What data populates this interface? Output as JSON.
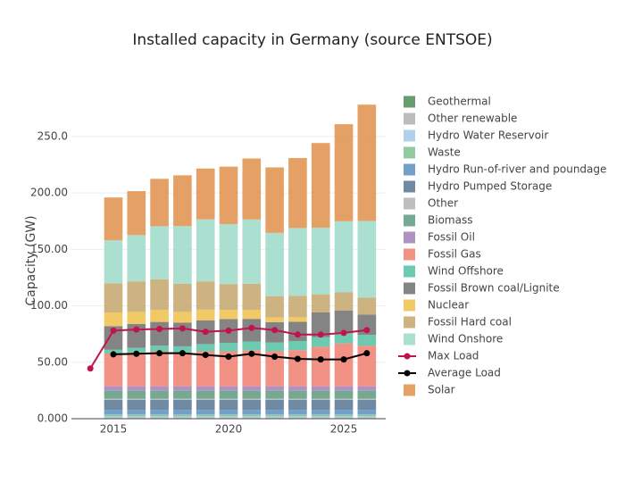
{
  "chart_data": {
    "type": "bar",
    "title": "Installed capacity in Germany (source ENTSOE)",
    "y_label": "Capacity (GW)",
    "x": [
      2015,
      2016,
      2017,
      2018,
      2019,
      2020,
      2021,
      2022,
      2023,
      2024,
      2025,
      2026
    ],
    "xlim": [
      2013.18,
      2026.82
    ],
    "xticks": [
      2015,
      2020,
      2025
    ],
    "ylim": [
      0,
      280
    ],
    "yticks": [
      {
        "value": 0,
        "label": "0.000"
      },
      {
        "value": 50,
        "label": "50.00"
      },
      {
        "value": 100,
        "label": "100.00"
      },
      {
        "value": 150,
        "label": "150.00"
      },
      {
        "value": 200,
        "label": "200.00"
      },
      {
        "value": 250,
        "label": "250.0"
      }
    ],
    "grid": true,
    "stacked": true,
    "series": [
      {
        "name": "Geothermal",
        "color": "#4d8b55",
        "values": [
          0.03,
          0.03,
          0.03,
          0.03,
          0.03,
          0.03,
          0.03,
          0.03,
          0.03,
          0.03,
          0.03,
          0.03
        ]
      },
      {
        "name": "Other renewable",
        "color": "#b0b0b0",
        "values": [
          0.5,
          0.5,
          0.5,
          0.5,
          0.5,
          0.5,
          0.5,
          0.5,
          0.5,
          0.5,
          0.5,
          0.5
        ]
      },
      {
        "name": "Hydro Water Reservoir",
        "color": "#a6c8e8",
        "values": [
          1.5,
          1.5,
          1.5,
          1.5,
          1.5,
          1.5,
          1.5,
          1.5,
          1.5,
          1.5,
          1.5,
          1.5
        ]
      },
      {
        "name": "Waste",
        "color": "#7fbf8f",
        "values": [
          1.7,
          1.7,
          1.7,
          1.7,
          1.7,
          1.7,
          1.7,
          1.7,
          1.7,
          1.7,
          1.7,
          1.7
        ]
      },
      {
        "name": "Hydro Run-of-river and poundage",
        "color": "#5b8fbf",
        "values": [
          4,
          4,
          4,
          4,
          4,
          4,
          4,
          4,
          4,
          4,
          4,
          4
        ]
      },
      {
        "name": "Hydro Pumped Storage",
        "color": "#567592",
        "values": [
          9,
          9,
          9,
          9,
          9,
          9,
          9,
          9,
          9,
          9,
          9,
          9
        ]
      },
      {
        "name": "Other",
        "color": "#b3b3b3",
        "values": [
          1,
          1,
          1,
          1,
          1,
          1,
          1,
          1,
          1,
          1,
          1,
          1
        ]
      },
      {
        "name": "Biomass",
        "color": "#5e9a7e",
        "values": [
          7,
          7,
          7,
          7,
          7,
          7,
          7,
          7,
          7,
          7,
          7,
          7
        ]
      },
      {
        "name": "Fossil Oil",
        "color": "#a07fb7",
        "values": [
          4,
          4,
          4,
          4,
          4,
          4,
          4,
          4,
          4,
          4,
          4,
          4
        ]
      },
      {
        "name": "Fossil Gas",
        "color": "#f07f6e",
        "values": [
          29,
          30,
          31,
          30,
          31,
          31,
          32,
          31,
          32,
          35,
          38,
          36
        ]
      },
      {
        "name": "Wind Offshore",
        "color": "#55bfa3",
        "values": [
          3.3,
          4.1,
          5,
          5.4,
          6.4,
          7.5,
          7.7,
          7.8,
          8.1,
          8.5,
          9.2,
          9.5
        ]
      },
      {
        "name": "Fossil Brown coal/Lignite",
        "color": "#6e6e6e",
        "values": [
          21,
          21,
          21,
          21,
          21,
          21,
          20,
          18,
          17,
          22,
          20,
          18
        ]
      },
      {
        "name": "Nuclear",
        "color": "#efc04a",
        "values": [
          12,
          10.8,
          10.8,
          9.5,
          9.5,
          8.1,
          8.1,
          4.1,
          4.1,
          0,
          0,
          0
        ]
      },
      {
        "name": "Fossil Hard coal",
        "color": "#c4a66c",
        "values": [
          26,
          27,
          27,
          25,
          25,
          23,
          23,
          19,
          19,
          16,
          16,
          15
        ]
      },
      {
        "name": "Wind Onshore",
        "color": "#9cdac9",
        "values": [
          38,
          41,
          47,
          51,
          55,
          53,
          57,
          56,
          60,
          59,
          63,
          68
        ]
      },
      {
        "name": "Max Load",
        "type": "line",
        "color": "#c0144c",
        "x": [
          2014,
          2015,
          2016,
          2017,
          2018,
          2019,
          2020,
          2021,
          2022,
          2023,
          2024,
          2025,
          2026
        ],
        "values": [
          44.5,
          78,
          79,
          79.5,
          80,
          77,
          78,
          80.5,
          78.5,
          74.5,
          74.5,
          76,
          78.5
        ]
      },
      {
        "name": "Average Load",
        "type": "line",
        "color": "#000000",
        "values": [
          57,
          57.5,
          58,
          58,
          56.5,
          55,
          57.5,
          55,
          53,
          52.5,
          52.5,
          58
        ]
      },
      {
        "name": "Solar",
        "color": "#e0914a",
        "values": [
          38,
          39,
          42,
          45,
          45,
          51,
          54,
          58,
          62,
          75,
          86,
          103
        ]
      }
    ]
  }
}
